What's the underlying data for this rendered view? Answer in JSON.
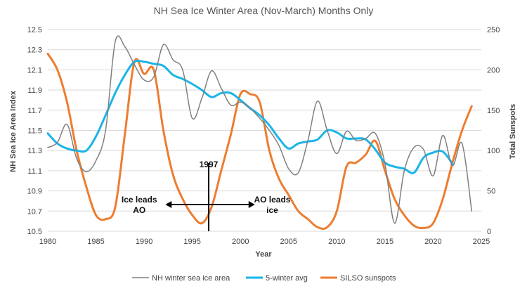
{
  "chart_data": {
    "type": "line",
    "title": "NH Sea Ice Winter Area (Nov-March) Months Only",
    "xlabel": "Year",
    "ylabel": "NH Sea Ice Area Index",
    "y2label": "Total Sunspots",
    "xlim": [
      1980,
      2025
    ],
    "ylim": [
      10.5,
      12.5
    ],
    "y2lim": [
      0,
      250
    ],
    "x_ticks": [
      "1980",
      "1985",
      "1990",
      "1995",
      "2000",
      "2005",
      "2010",
      "2015",
      "2020",
      "2025"
    ],
    "y_ticks": [
      "10.5",
      "10.7",
      "10.9",
      "11.1",
      "11.3",
      "11.5",
      "11.7",
      "11.9",
      "12.1",
      "12.3",
      "12.5"
    ],
    "y2_ticks": [
      "0",
      "50",
      "100",
      "150",
      "200",
      "250"
    ],
    "grid": "horizontal",
    "legend_position": "bottom",
    "series": [
      {
        "name": "NH winter sea ice area",
        "axis": "left",
        "color": "#808080",
        "x": [
          1980,
          1981,
          1982,
          1983,
          1984,
          1985,
          1986,
          1987,
          1988,
          1989,
          1990,
          1991,
          1992,
          1993,
          1994,
          1995,
          1996,
          1997,
          1998,
          1999,
          2000,
          2001,
          2002,
          2003,
          2004,
          2005,
          2006,
          2007,
          2008,
          2009,
          2010,
          2011,
          2012,
          2013,
          2014,
          2015,
          2016,
          2017,
          2018,
          2019,
          2020,
          2021,
          2022,
          2023,
          2024
        ],
        "y": [
          11.33,
          11.38,
          11.56,
          11.22,
          11.09,
          11.2,
          11.5,
          12.38,
          12.33,
          12.15,
          12.0,
          12.03,
          12.35,
          12.2,
          12.1,
          11.62,
          11.82,
          12.09,
          11.92,
          11.75,
          11.78,
          11.72,
          11.62,
          11.5,
          11.35,
          11.12,
          11.08,
          11.4,
          11.79,
          11.5,
          11.27,
          11.49,
          11.4,
          11.42,
          11.47,
          11.17,
          10.58,
          11.1,
          11.33,
          11.31,
          11.05,
          11.45,
          11.15,
          11.37,
          10.7
        ]
      },
      {
        "name": "5-winter avg",
        "axis": "left",
        "color": "#1ab5e8",
        "x": [
          1980,
          1981,
          1982,
          1983,
          1984,
          1985,
          1986,
          1987,
          1988,
          1989,
          1990,
          1991,
          1992,
          1993,
          1994,
          1995,
          1996,
          1997,
          1998,
          1999,
          2000,
          2001,
          2002,
          2003,
          2004,
          2005,
          2006,
          2007,
          2008,
          2009,
          2010,
          2011,
          2012,
          2013,
          2014,
          2015,
          2016,
          2017,
          2018,
          2019,
          2020,
          2021,
          2022
        ],
        "y": [
          11.47,
          11.37,
          11.32,
          11.3,
          11.3,
          11.44,
          11.65,
          11.87,
          12.05,
          12.18,
          12.18,
          12.16,
          12.14,
          12.05,
          12.01,
          11.96,
          11.9,
          11.83,
          11.87,
          11.87,
          11.8,
          11.72,
          11.65,
          11.55,
          11.42,
          11.32,
          11.37,
          11.39,
          11.41,
          11.5,
          11.48,
          11.42,
          11.42,
          11.41,
          11.31,
          11.18,
          11.14,
          11.12,
          11.08,
          11.23,
          11.28,
          11.29,
          11.17
        ]
      },
      {
        "name": "SILSO sunspots",
        "axis": "right",
        "color": "#ed7d31",
        "x": [
          1980,
          1981,
          1982,
          1983,
          1984,
          1985,
          1986,
          1987,
          1988,
          1989,
          1990,
          1991,
          1992,
          1993,
          1994,
          1995,
          1996,
          1997,
          1998,
          1999,
          2000,
          2001,
          2002,
          2003,
          2004,
          2005,
          2006,
          2007,
          2008,
          2009,
          2010,
          2011,
          2012,
          2013,
          2014,
          2015,
          2016,
          2017,
          2018,
          2019,
          2020,
          2021,
          2022,
          2023,
          2024
        ],
        "y": [
          220,
          200,
          160,
          100,
          55,
          20,
          15,
          30,
          120,
          210,
          195,
          200,
          125,
          70,
          40,
          20,
          10,
          30,
          75,
          120,
          170,
          170,
          160,
          100,
          65,
          45,
          25,
          15,
          5,
          5,
          25,
          80,
          85,
          95,
          112,
          75,
          40,
          20,
          7,
          4,
          10,
          40,
          85,
          125,
          155
        ]
      }
    ],
    "annotations": [
      {
        "text": "1997",
        "x": 1996.7
      },
      {
        "text": "Ice leads",
        "x": 1989.5
      },
      {
        "text": "AO",
        "x": 1989.5
      },
      {
        "text": "AO leads",
        "x": 2003.3
      },
      {
        "text": "ice",
        "x": 2003.3
      }
    ]
  }
}
